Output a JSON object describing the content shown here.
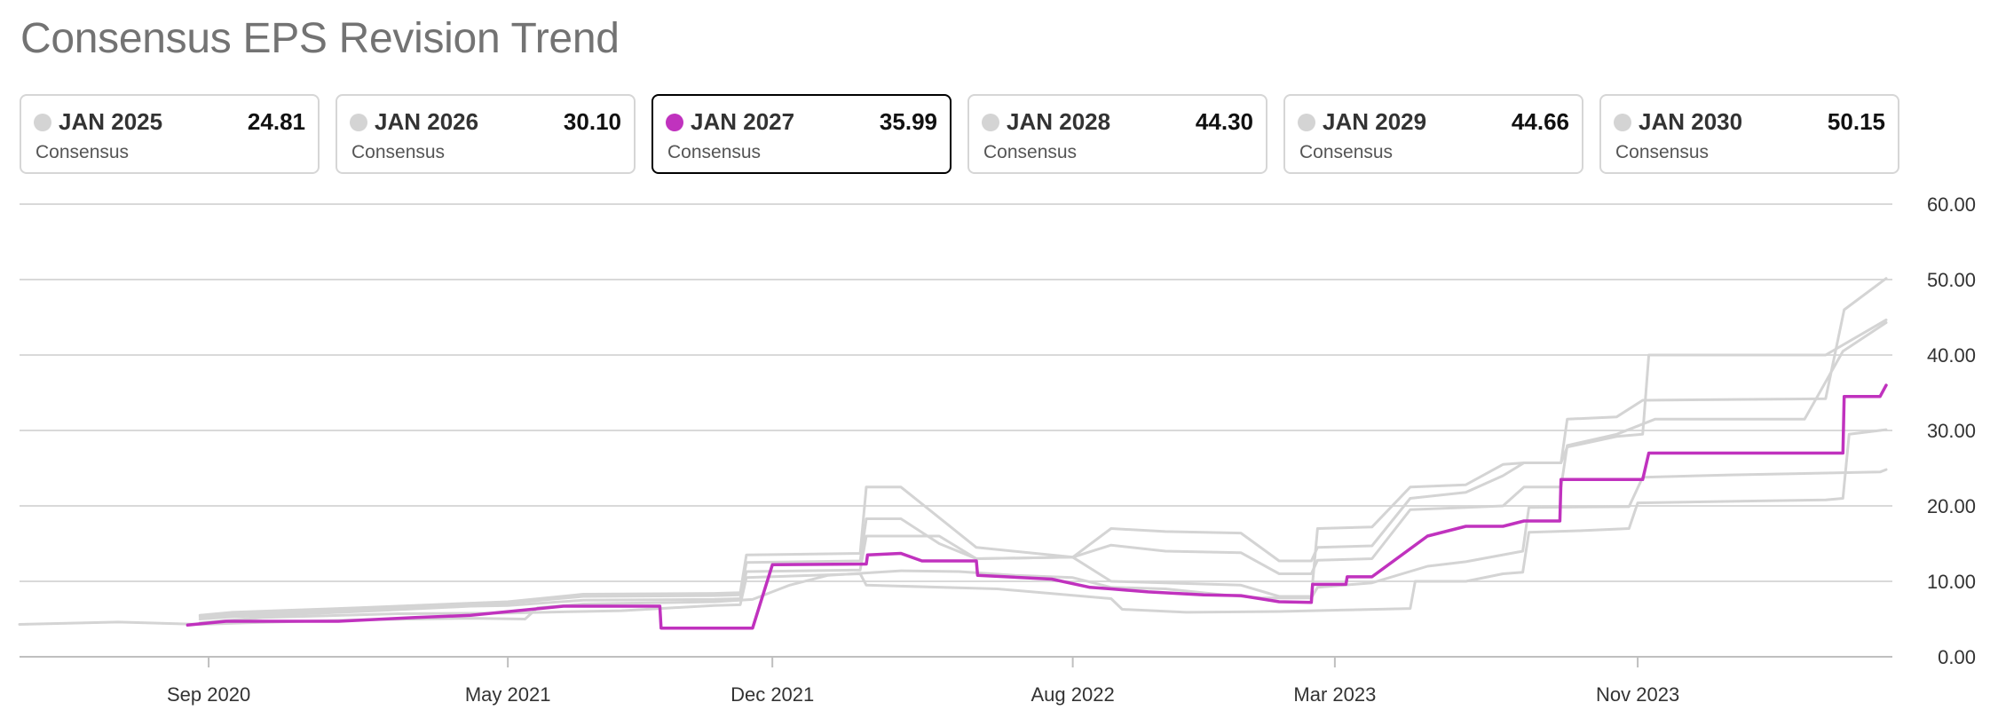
{
  "title": "Consensus EPS Revision Trend",
  "cards": [
    {
      "name": "JAN 2025",
      "value": "24.81",
      "sub": "Consensus",
      "selected": false
    },
    {
      "name": "JAN 2026",
      "value": "30.10",
      "sub": "Consensus",
      "selected": false
    },
    {
      "name": "JAN 2027",
      "value": "35.99",
      "sub": "Consensus",
      "selected": true
    },
    {
      "name": "JAN 2028",
      "value": "44.30",
      "sub": "Consensus",
      "selected": false
    },
    {
      "name": "JAN 2029",
      "value": "44.66",
      "sub": "Consensus",
      "selected": false
    },
    {
      "name": "JAN 2030",
      "value": "50.15",
      "sub": "Consensus",
      "selected": false
    }
  ],
  "colors": {
    "highlight": "#c032be",
    "muted": "#d4d4d4",
    "grid": "#d9d9d9",
    "axis": "#bfbfbf",
    "tick_text": "#333333"
  },
  "chart_data": {
    "type": "line",
    "title": "Consensus EPS Revision Trend",
    "xlabel": "",
    "ylabel": "",
    "xlim": [
      "2020-04-01",
      "2024-05-25"
    ],
    "ylim": [
      0,
      60
    ],
    "grid": true,
    "y_axis_position": "right",
    "y_ticks": [
      "0.00",
      "10.00",
      "20.00",
      "30.00",
      "40.00",
      "50.00",
      "60.00"
    ],
    "x_ticks": [
      {
        "date": "2020-09-01",
        "label": "Sep 2020"
      },
      {
        "date": "2021-05-01",
        "label": "May 2021"
      },
      {
        "date": "2021-12-01",
        "label": "Dec 2021"
      },
      {
        "date": "2022-08-01",
        "label": "Aug 2022"
      },
      {
        "date": "2023-03-01",
        "label": "Mar 2023"
      },
      {
        "date": "2023-11-01",
        "label": "Nov 2023"
      }
    ],
    "selected_series": "JAN 2027",
    "series": [
      {
        "name": "JAN 2025",
        "points": [
          [
            "2020-04-01",
            4.3
          ],
          [
            "2020-06-20",
            4.6
          ],
          [
            "2020-08-25",
            4.3
          ],
          [
            "2020-10-01",
            4.5
          ],
          [
            "2021-01-01",
            4.9
          ],
          [
            "2021-04-01",
            5.1
          ],
          [
            "2021-05-15",
            5.0
          ],
          [
            "2021-05-25",
            6.5
          ],
          [
            "2021-07-01",
            7.0
          ],
          [
            "2021-10-15",
            7.3
          ],
          [
            "2021-11-15",
            7.6
          ],
          [
            "2021-12-15",
            9.5
          ],
          [
            "2022-01-15",
            10.8
          ],
          [
            "2022-03-15",
            11.4
          ],
          [
            "2022-05-01",
            11.3
          ],
          [
            "2022-06-15",
            10.8
          ],
          [
            "2022-08-01",
            10.5
          ],
          [
            "2022-09-01",
            9.2
          ],
          [
            "2022-10-15",
            9.0
          ],
          [
            "2022-12-01",
            8.2
          ],
          [
            "2023-01-01",
            7.8
          ],
          [
            "2023-02-10",
            7.8
          ],
          [
            "2023-02-15",
            9.2
          ],
          [
            "2023-03-31",
            9.8
          ],
          [
            "2023-05-15",
            12.0
          ],
          [
            "2023-06-15",
            12.6
          ],
          [
            "2023-07-31",
            14.0
          ],
          [
            "2023-08-05",
            19.8
          ],
          [
            "2023-10-25",
            19.9
          ],
          [
            "2023-11-05",
            23.8
          ],
          [
            "2024-01-15",
            24.1
          ],
          [
            "2024-05-15",
            24.5
          ],
          [
            "2024-05-20",
            24.81
          ]
        ]
      },
      {
        "name": "JAN 2026",
        "points": [
          [
            "2020-08-25",
            4.5
          ],
          [
            "2020-10-15",
            5.2
          ],
          [
            "2021-02-01",
            5.7
          ],
          [
            "2021-05-01",
            5.8
          ],
          [
            "2021-08-01",
            6.1
          ],
          [
            "2021-10-15",
            6.8
          ],
          [
            "2021-11-05",
            6.9
          ],
          [
            "2021-11-10",
            10.5
          ],
          [
            "2022-02-10",
            11.0
          ],
          [
            "2022-02-15",
            9.5
          ],
          [
            "2022-06-01",
            9.0
          ],
          [
            "2022-09-01",
            7.7
          ],
          [
            "2022-09-10",
            6.3
          ],
          [
            "2022-11-01",
            5.9
          ],
          [
            "2023-01-15",
            6.0
          ],
          [
            "2023-03-10",
            6.2
          ],
          [
            "2023-05-01",
            6.4
          ],
          [
            "2023-05-05",
            10.0
          ],
          [
            "2023-06-15",
            10.0
          ],
          [
            "2023-07-15",
            11.0
          ],
          [
            "2023-07-31",
            11.2
          ],
          [
            "2023-08-05",
            16.5
          ],
          [
            "2023-09-15",
            16.7
          ],
          [
            "2023-10-25",
            17.0
          ],
          [
            "2023-11-01",
            20.4
          ],
          [
            "2024-01-15",
            20.6
          ],
          [
            "2024-04-01",
            20.8
          ],
          [
            "2024-04-15",
            21.0
          ],
          [
            "2024-04-20",
            29.5
          ],
          [
            "2024-05-20",
            30.1
          ]
        ]
      },
      {
        "name": "JAN 2027",
        "points": [
          [
            "2020-08-15",
            4.2
          ],
          [
            "2020-09-15",
            4.7
          ],
          [
            "2020-12-15",
            4.7
          ],
          [
            "2021-02-15",
            5.2
          ],
          [
            "2021-04-01",
            5.5
          ],
          [
            "2021-06-15",
            6.7
          ],
          [
            "2021-09-01",
            6.7
          ],
          [
            "2021-09-02",
            3.8
          ],
          [
            "2021-11-15",
            3.8
          ],
          [
            "2021-12-01",
            12.2
          ],
          [
            "2022-02-15",
            12.3
          ],
          [
            "2022-02-16",
            13.5
          ],
          [
            "2022-03-15",
            13.7
          ],
          [
            "2022-04-01",
            12.7
          ],
          [
            "2022-05-15",
            12.7
          ],
          [
            "2022-05-16",
            10.8
          ],
          [
            "2022-07-15",
            10.3
          ],
          [
            "2022-08-15",
            9.2
          ],
          [
            "2022-09-01",
            9.0
          ],
          [
            "2022-10-01",
            8.6
          ],
          [
            "2022-11-15",
            8.2
          ],
          [
            "2022-12-15",
            8.1
          ],
          [
            "2023-01-15",
            7.3
          ],
          [
            "2023-02-10",
            7.2
          ],
          [
            "2023-02-11",
            9.6
          ],
          [
            "2023-03-10",
            9.6
          ],
          [
            "2023-03-11",
            10.6
          ],
          [
            "2023-03-31",
            10.6
          ],
          [
            "2023-05-15",
            16.0
          ],
          [
            "2023-06-15",
            17.3
          ],
          [
            "2023-07-15",
            17.3
          ],
          [
            "2023-08-01",
            18.0
          ],
          [
            "2023-08-30",
            18.0
          ],
          [
            "2023-08-31",
            23.5
          ],
          [
            "2023-11-05",
            23.5
          ],
          [
            "2023-11-10",
            27.0
          ],
          [
            "2024-04-15",
            27.0
          ],
          [
            "2024-04-16",
            34.5
          ],
          [
            "2024-05-15",
            34.5
          ],
          [
            "2024-05-20",
            35.99
          ]
        ]
      },
      {
        "name": "JAN 2028",
        "points": [
          [
            "2020-08-25",
            5.0
          ],
          [
            "2020-09-20",
            5.3
          ],
          [
            "2021-01-01",
            6.0
          ],
          [
            "2021-04-01",
            6.7
          ],
          [
            "2021-05-01",
            6.8
          ],
          [
            "2021-07-01",
            7.5
          ],
          [
            "2021-10-15",
            7.6
          ],
          [
            "2021-11-05",
            7.7
          ],
          [
            "2021-11-10",
            11.3
          ],
          [
            "2022-02-10",
            11.5
          ],
          [
            "2022-02-15",
            16.0
          ],
          [
            "2022-04-15",
            16.0
          ],
          [
            "2022-05-15",
            13.0
          ],
          [
            "2022-08-01",
            13.2
          ],
          [
            "2022-09-01",
            14.8
          ],
          [
            "2022-10-15",
            14.0
          ],
          [
            "2022-12-15",
            13.8
          ],
          [
            "2023-01-15",
            11.0
          ],
          [
            "2023-02-10",
            11.0
          ],
          [
            "2023-02-15",
            12.8
          ],
          [
            "2023-03-31",
            13.0
          ],
          [
            "2023-05-01",
            19.5
          ],
          [
            "2023-06-15",
            19.8
          ],
          [
            "2023-07-15",
            20.0
          ],
          [
            "2023-08-01",
            22.5
          ],
          [
            "2023-08-31",
            22.5
          ],
          [
            "2023-09-05",
            28.0
          ],
          [
            "2023-10-15",
            29.5
          ],
          [
            "2023-11-15",
            31.5
          ],
          [
            "2024-03-15",
            31.5
          ],
          [
            "2024-04-15",
            40.5
          ],
          [
            "2024-05-20",
            44.3
          ]
        ]
      },
      {
        "name": "JAN 2029",
        "points": [
          [
            "2020-08-25",
            5.3
          ],
          [
            "2020-09-20",
            5.6
          ],
          [
            "2021-01-01",
            6.3
          ],
          [
            "2021-04-01",
            7.0
          ],
          [
            "2021-05-01",
            7.1
          ],
          [
            "2021-07-01",
            8.0
          ],
          [
            "2021-10-15",
            8.1
          ],
          [
            "2021-11-05",
            8.2
          ],
          [
            "2021-11-10",
            12.5
          ],
          [
            "2022-02-10",
            12.7
          ],
          [
            "2022-02-15",
            18.3
          ],
          [
            "2022-03-15",
            18.3
          ],
          [
            "2022-04-15",
            15.0
          ],
          [
            "2022-05-15",
            13.0
          ],
          [
            "2022-08-01",
            13.2
          ],
          [
            "2022-09-01",
            17.0
          ],
          [
            "2022-10-15",
            16.6
          ],
          [
            "2022-12-15",
            16.4
          ],
          [
            "2023-01-15",
            12.7
          ],
          [
            "2023-02-10",
            12.7
          ],
          [
            "2023-02-15",
            14.5
          ],
          [
            "2023-03-31",
            14.7
          ],
          [
            "2023-05-01",
            21.0
          ],
          [
            "2023-06-15",
            21.8
          ],
          [
            "2023-07-15",
            24.0
          ],
          [
            "2023-08-01",
            25.7
          ],
          [
            "2023-08-31",
            25.7
          ],
          [
            "2023-09-05",
            27.8
          ],
          [
            "2023-10-15",
            29.2
          ],
          [
            "2023-11-05",
            29.5
          ],
          [
            "2023-11-10",
            40.0
          ],
          [
            "2024-04-01",
            40.0
          ],
          [
            "2024-05-20",
            44.66
          ]
        ]
      },
      {
        "name": "JAN 2030",
        "points": [
          [
            "2020-08-25",
            5.5
          ],
          [
            "2020-09-20",
            5.9
          ],
          [
            "2021-01-01",
            6.5
          ],
          [
            "2021-04-01",
            7.1
          ],
          [
            "2021-05-01",
            7.3
          ],
          [
            "2021-07-01",
            8.3
          ],
          [
            "2021-10-15",
            8.4
          ],
          [
            "2021-11-05",
            8.5
          ],
          [
            "2021-11-10",
            13.5
          ],
          [
            "2022-02-10",
            13.7
          ],
          [
            "2022-02-15",
            22.5
          ],
          [
            "2022-03-15",
            22.5
          ],
          [
            "2022-05-15",
            14.5
          ],
          [
            "2022-08-01",
            13.2
          ],
          [
            "2022-09-01",
            10.0
          ],
          [
            "2022-10-15",
            9.8
          ],
          [
            "2022-12-15",
            9.5
          ],
          [
            "2023-01-15",
            8.0
          ],
          [
            "2023-02-10",
            8.0
          ],
          [
            "2023-02-15",
            17.0
          ],
          [
            "2023-03-31",
            17.2
          ],
          [
            "2023-05-01",
            22.5
          ],
          [
            "2023-06-15",
            22.8
          ],
          [
            "2023-07-15",
            25.5
          ],
          [
            "2023-08-01",
            25.7
          ],
          [
            "2023-08-31",
            25.7
          ],
          [
            "2023-09-05",
            31.5
          ],
          [
            "2023-10-15",
            31.8
          ],
          [
            "2023-11-05",
            34.0
          ],
          [
            "2024-04-01",
            34.2
          ],
          [
            "2024-04-16",
            46.0
          ],
          [
            "2024-05-20",
            50.15
          ]
        ]
      }
    ]
  }
}
